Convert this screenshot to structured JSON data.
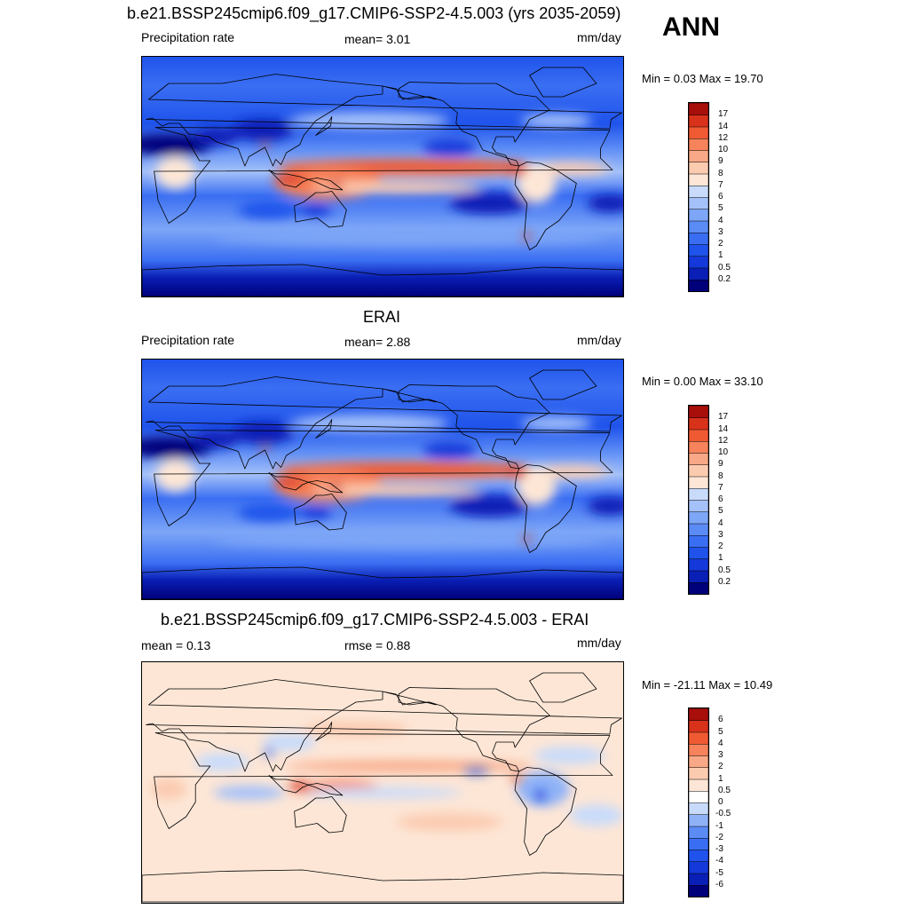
{
  "season": "ANN",
  "units": "mm/day",
  "panels": [
    {
      "id": "model",
      "title": "b.e21.BSSP245cmip6.f09_g17.CMIP6-SSP2-4.5.003 (yrs 2035-2059)",
      "left_label": "Precipitation rate",
      "center_label": "mean=   3.01",
      "right_label": "mm/day",
      "minmax": "Min =   0.03 Max =  19.70"
    },
    {
      "id": "obs",
      "title": "ERAI",
      "left_label": "Precipitation rate",
      "center_label": "mean=   2.88",
      "right_label": "mm/day",
      "minmax": "Min =   0.00 Max =  33.10"
    },
    {
      "id": "diff",
      "title": "b.e21.BSSP245cmip6.f09_g17.CMIP6-SSP2-4.5.003 - ERAI",
      "left_label": "mean =   0.13",
      "center_label": "rmse =   0.88",
      "right_label": "mm/day",
      "minmax": "Min = -21.11 Max =  10.49"
    }
  ],
  "chart_data": [
    {
      "type": "heatmap",
      "title": "b.e21.BSSP245cmip6.f09_g17.CMIP6-SSP2-4.5.003 (yrs 2035-2059)",
      "variable": "Precipitation rate",
      "units": "mm/day",
      "mean": 3.01,
      "min": 0.03,
      "max": 19.7,
      "colorbar_levels": [
        "0.2",
        "0.5",
        "1",
        "2",
        "3",
        "4",
        "5",
        "6",
        "7",
        "8",
        "9",
        "10",
        "12",
        "14",
        "17"
      ],
      "colorbar_colors": [
        "#00007a",
        "#0a1fb5",
        "#1438d9",
        "#1f53eb",
        "#3a6ef2",
        "#5b8bf5",
        "#7da6f7",
        "#a4c1f9",
        "#c8dbfb",
        "#fde6d6",
        "#fbcbb0",
        "#f8a886",
        "#f6835c",
        "#f05a33",
        "#d8321b",
        "#a80f0a"
      ]
    },
    {
      "type": "heatmap",
      "title": "ERAI",
      "variable": "Precipitation rate",
      "units": "mm/day",
      "mean": 2.88,
      "min": 0.0,
      "max": 33.1,
      "colorbar_levels": [
        "0.2",
        "0.5",
        "1",
        "2",
        "3",
        "4",
        "5",
        "6",
        "7",
        "8",
        "9",
        "10",
        "12",
        "14",
        "17"
      ],
      "colorbar_colors": [
        "#00007a",
        "#0a1fb5",
        "#1438d9",
        "#1f53eb",
        "#3a6ef2",
        "#5b8bf5",
        "#7da6f7",
        "#a4c1f9",
        "#c8dbfb",
        "#fde6d6",
        "#fbcbb0",
        "#f8a886",
        "#f6835c",
        "#f05a33",
        "#d8321b",
        "#a80f0a"
      ]
    },
    {
      "type": "heatmap",
      "title": "b.e21.BSSP245cmip6.f09_g17.CMIP6-SSP2-4.5.003 - ERAI",
      "units": "mm/day",
      "mean": 0.13,
      "rmse": 0.88,
      "min": -21.11,
      "max": 10.49,
      "colorbar_levels": [
        "-6",
        "-5",
        "-4",
        "-3",
        "-2",
        "-1",
        "-0.5",
        "0",
        "0.5",
        "1",
        "2",
        "3",
        "4",
        "5",
        "6"
      ],
      "colorbar_colors": [
        "#00007a",
        "#0a1fb5",
        "#1438d9",
        "#1f53eb",
        "#3a6ef2",
        "#5b8bf5",
        "#8fb2f7",
        "#c8dbfb",
        "#ffffff",
        "#fde6d6",
        "#fbcbb0",
        "#f8a886",
        "#f6835c",
        "#f05a33",
        "#d8321b",
        "#a80f0a"
      ]
    }
  ]
}
